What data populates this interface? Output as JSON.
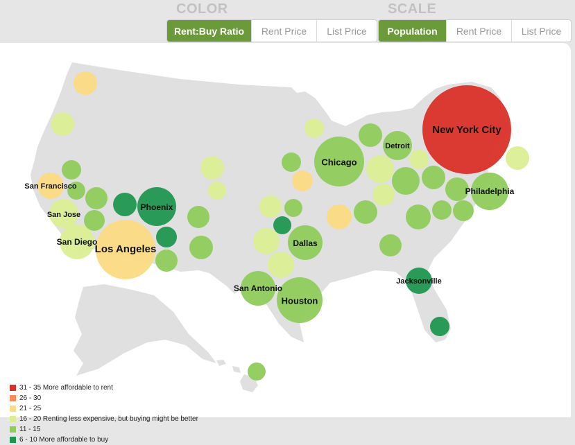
{
  "controls": {
    "color": {
      "title": "COLOR",
      "buttons": [
        {
          "label": "Rent:Buy Ratio",
          "active": true
        },
        {
          "label": "Rent Price",
          "active": false
        },
        {
          "label": "List Price",
          "active": false
        }
      ]
    },
    "scale": {
      "title": "SCALE",
      "buttons": [
        {
          "label": "Population",
          "active": true
        },
        {
          "label": "Rent Price",
          "active": false
        },
        {
          "label": "List Price",
          "active": false
        }
      ]
    }
  },
  "colors": {
    "red": "#d93027",
    "orange": "#f88c5c",
    "amber": "#fbdb83",
    "lightyellow": "#dcee94",
    "lightgreen": "#8fcc5c",
    "darkgreen": "#1f9650",
    "land": "#e0e0e0",
    "active_button": "#6b9a3a"
  },
  "legend": [
    {
      "color": "red",
      "label": "31 - 35 More affordable to rent"
    },
    {
      "color": "orange",
      "label": "26 - 30"
    },
    {
      "color": "amber",
      "label": "21 - 25"
    },
    {
      "color": "lightyellow",
      "label": "16 - 20 Renting less expensive, but buying might be better"
    },
    {
      "color": "lightgreen",
      "label": "11 - 15"
    },
    {
      "color": "darkgreen",
      "label": "6 - 10 More affordable to buy"
    }
  ],
  "cities": [
    {
      "name": "New York City",
      "color": "red"
    },
    {
      "name": "Chicago",
      "color": "lightgreen"
    },
    {
      "name": "Detroit",
      "color": "lightgreen"
    },
    {
      "name": "Philadelphia",
      "color": "lightgreen"
    },
    {
      "name": "San Francisco",
      "color": "amber"
    },
    {
      "name": "San Jose",
      "color": "lightyellow"
    },
    {
      "name": "San Diego",
      "color": "lightyellow"
    },
    {
      "name": "Los Angeles",
      "color": "amber"
    },
    {
      "name": "Phoenix",
      "color": "darkgreen"
    },
    {
      "name": "Dallas",
      "color": "lightgreen"
    },
    {
      "name": "San Antonio",
      "color": "lightgreen"
    },
    {
      "name": "Houston",
      "color": "lightgreen"
    },
    {
      "name": "Jacksonville",
      "color": "darkgreen"
    },
    {
      "color": "amber"
    },
    {
      "color": "lightyellow"
    },
    {
      "color": "lightgreen"
    },
    {
      "color": "lightgreen"
    },
    {
      "color": "lightgreen"
    },
    {
      "color": "lightgreen"
    },
    {
      "color": "darkgreen"
    },
    {
      "color": "darkgreen"
    },
    {
      "color": "lightgreen"
    },
    {
      "color": "lightgreen"
    },
    {
      "color": "lightyellow"
    },
    {
      "color": "lightyellow"
    },
    {
      "color": "lightgreen"
    },
    {
      "color": "lightyellow"
    },
    {
      "color": "lightgreen"
    },
    {
      "color": "darkgreen"
    },
    {
      "color": "lightyellow"
    },
    {
      "color": "lightyellow"
    },
    {
      "color": "lightyellow"
    },
    {
      "color": "lightgreen"
    },
    {
      "color": "amber"
    },
    {
      "color": "lightgreen"
    },
    {
      "color": "lightyellow"
    },
    {
      "color": "lightyellow"
    },
    {
      "color": "lightgreen"
    },
    {
      "color": "lightgreen"
    },
    {
      "color": "lightyellow"
    },
    {
      "color": "lightgreen"
    },
    {
      "color": "lightgreen"
    },
    {
      "color": "lightgreen"
    },
    {
      "color": "lightgreen"
    },
    {
      "color": "amber"
    },
    {
      "color": "lightgreen"
    },
    {
      "color": "lightgreen"
    },
    {
      "color": "lightyellow"
    },
    {
      "color": "darkgreen"
    },
    {
      "color": "lightgreen"
    }
  ]
}
